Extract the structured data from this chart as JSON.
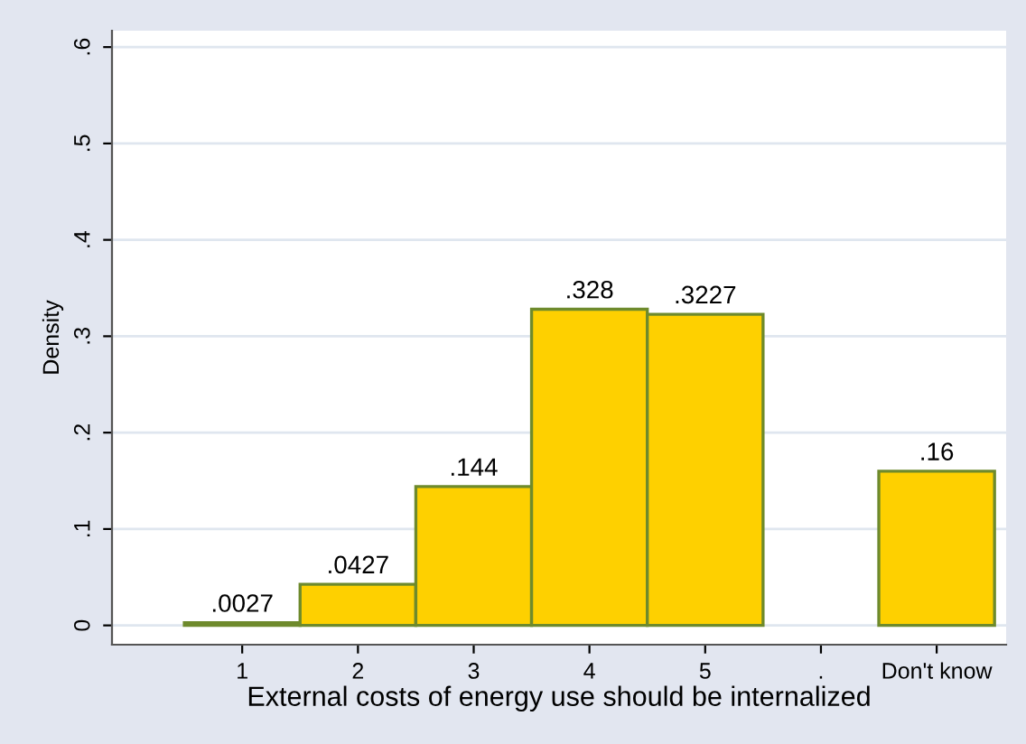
{
  "chart_data": {
    "type": "bar",
    "xlabel": "External costs of energy use should be internalized",
    "ylabel": "Density",
    "categories": [
      "1",
      "2",
      "3",
      "4",
      "5",
      ".",
      "Don't know"
    ],
    "values": [
      0.0027,
      0.0427,
      0.144,
      0.328,
      0.3227,
      null,
      0.16
    ],
    "value_labels": [
      ".0027",
      ".0427",
      ".144",
      ".328",
      ".3227",
      null,
      ".16"
    ],
    "color": "#fed000",
    "ylim": [
      -0.02,
      0.617
    ],
    "yticks": [
      {
        "value": 0,
        "label": "0"
      },
      {
        "value": 0.1,
        "label": ".1"
      },
      {
        "value": 0.2,
        "label": ".2"
      },
      {
        "value": 0.3,
        "label": ".3"
      },
      {
        "value": 0.4,
        "label": ".4"
      },
      {
        "value": 0.5,
        "label": ".5"
      },
      {
        "value": 0.6,
        "label": ".6"
      }
    ],
    "grid": "y"
  }
}
